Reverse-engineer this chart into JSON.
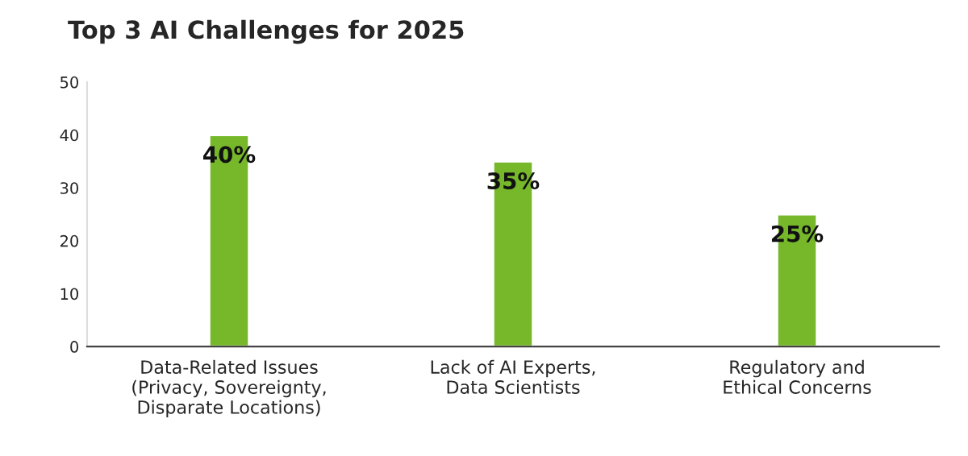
{
  "chart_data": {
    "type": "bar",
    "title": "Top 3 AI Challenges for 2025",
    "categories": [
      "Data-Related Issues\n(Privacy, Sovereignty,\nDisparate Locations)",
      "Lack of AI Experts,\nData Scientists",
      "Regulatory and\nEthical Concerns"
    ],
    "values": [
      40,
      35,
      25
    ],
    "value_labels": [
      "40%",
      "35%",
      "25%"
    ],
    "color": "#76b82a",
    "ylim": [
      0,
      50
    ],
    "yticks": [
      0,
      10,
      20,
      30,
      40,
      50
    ],
    "grid": false
  }
}
